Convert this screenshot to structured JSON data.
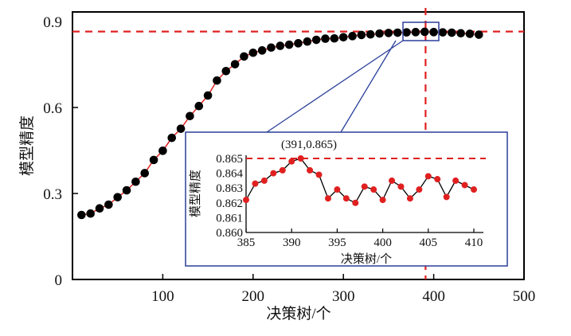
{
  "chart_data": [
    {
      "type": "scatter",
      "title": "",
      "xlabel": "决策树/个",
      "ylabel": "模型精度",
      "xlim": [
        0,
        500
      ],
      "ylim": [
        0,
        0.9
      ],
      "xticks": [
        "100",
        "200",
        "300",
        "400",
        "500"
      ],
      "yticks": [
        "0",
        "0.3",
        "0.6",
        "0.9"
      ],
      "x": [
        10,
        20,
        30,
        40,
        50,
        60,
        70,
        80,
        90,
        100,
        110,
        120,
        130,
        140,
        150,
        160,
        170,
        180,
        190,
        200,
        210,
        220,
        230,
        240,
        250,
        260,
        270,
        280,
        290,
        300,
        310,
        320,
        330,
        340,
        350,
        360,
        370,
        380,
        390,
        400,
        410,
        420,
        430,
        440,
        450
      ],
      "y": [
        0.225,
        0.23,
        0.248,
        0.261,
        0.287,
        0.311,
        0.341,
        0.371,
        0.417,
        0.449,
        0.494,
        0.526,
        0.57,
        0.605,
        0.642,
        0.694,
        0.727,
        0.751,
        0.778,
        0.791,
        0.799,
        0.809,
        0.815,
        0.819,
        0.824,
        0.83,
        0.836,
        0.84,
        0.841,
        0.845,
        0.849,
        0.853,
        0.855,
        0.858,
        0.86,
        0.861,
        0.862,
        0.863,
        0.864,
        0.863,
        0.862,
        0.861,
        0.859,
        0.857,
        0.854
      ],
      "reference_lines": {
        "horizontal": 0.865,
        "vertical": 391
      },
      "point_color": "#000000",
      "line_color": "#e02020"
    },
    {
      "type": "line",
      "title": "(391,0.865)",
      "xlabel": "决策树/个",
      "ylabel": "模型精度",
      "xlim": [
        385,
        410
      ],
      "ylim": [
        0.86,
        0.865
      ],
      "xticks": [
        "385",
        "390",
        "395",
        "400",
        "405",
        "410"
      ],
      "yticks": [
        "0.860",
        "0.861",
        "0.862",
        "0.863",
        "0.864",
        "0.865"
      ],
      "x": [
        385,
        386,
        387,
        388,
        389,
        390,
        391,
        392,
        393,
        394,
        395,
        396,
        397,
        398,
        399,
        400,
        401,
        402,
        403,
        404,
        405,
        406,
        407,
        408,
        409,
        410
      ],
      "y": [
        0.8622,
        0.8633,
        0.8635,
        0.864,
        0.8642,
        0.8648,
        0.865,
        0.8642,
        0.8639,
        0.8623,
        0.8629,
        0.8623,
        0.862,
        0.8631,
        0.8629,
        0.8622,
        0.8635,
        0.8631,
        0.8623,
        0.8629,
        0.8638,
        0.8636,
        0.8624,
        0.8635,
        0.8632,
        0.8629
      ],
      "reference_lines": {
        "horizontal": 0.865
      },
      "point_color": "#e02020",
      "line_color": "#000000"
    }
  ]
}
